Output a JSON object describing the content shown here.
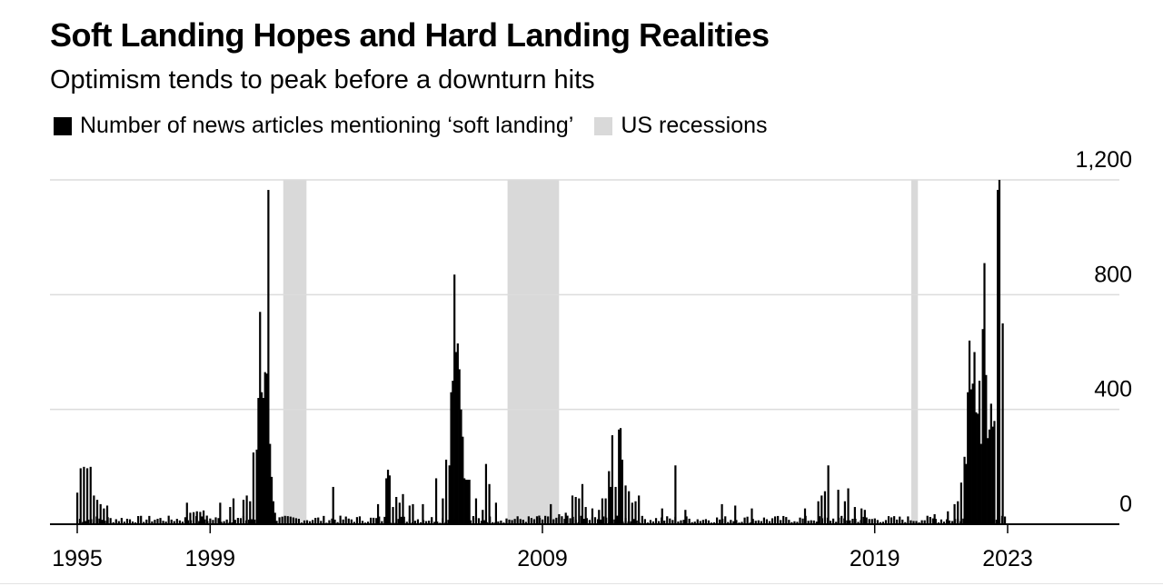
{
  "title": "Soft Landing Hopes and Hard Landing Realities",
  "subtitle": "Optimism tends to peak before a downturn hits",
  "legend": {
    "series": "Number of news articles mentioning ‘soft landing’",
    "recessions": "US recessions"
  },
  "colors": {
    "bars": "#000000",
    "recession": "#d9d9d9",
    "grid": "#dcdcdc",
    "axis": "#000000"
  },
  "chart_data": {
    "type": "bar",
    "title": "Soft Landing Hopes and Hard Landing Realities",
    "xlabel": "",
    "ylabel": "",
    "ylim": [
      0,
      1200
    ],
    "yticks": [
      0,
      400,
      800,
      1200
    ],
    "ytick_labels": [
      "0",
      "400",
      "800",
      "1,200"
    ],
    "x_range": [
      1995,
      2025.3
    ],
    "xticks": [
      1995,
      1999,
      2009,
      2019,
      2023
    ],
    "xtick_labels": [
      "1995",
      "1999",
      "2009",
      "2019",
      "2023"
    ],
    "recessions": [
      [
        2001.2,
        2001.9
      ],
      [
        2007.95,
        2009.5
      ],
      [
        2020.1,
        2020.3
      ]
    ],
    "peaks": [
      {
        "x": 1995.0,
        "y": 110
      },
      {
        "x": 1995.1,
        "y": 195
      },
      {
        "x": 1995.2,
        "y": 200
      },
      {
        "x": 1995.3,
        "y": 195
      },
      {
        "x": 1995.4,
        "y": 200
      },
      {
        "x": 1995.5,
        "y": 100
      },
      {
        "x": 1995.6,
        "y": 85
      },
      {
        "x": 1995.7,
        "y": 70
      },
      {
        "x": 1995.8,
        "y": 55
      },
      {
        "x": 1995.9,
        "y": 65
      },
      {
        "x": 1998.3,
        "y": 75
      },
      {
        "x": 1998.4,
        "y": 40
      },
      {
        "x": 1998.5,
        "y": 42
      },
      {
        "x": 1998.6,
        "y": 45
      },
      {
        "x": 1998.7,
        "y": 43
      },
      {
        "x": 1998.8,
        "y": 48
      },
      {
        "x": 1998.9,
        "y": 30
      },
      {
        "x": 1999.3,
        "y": 75
      },
      {
        "x": 1999.6,
        "y": 60
      },
      {
        "x": 1999.7,
        "y": 90
      },
      {
        "x": 2000.0,
        "y": 85
      },
      {
        "x": 2000.1,
        "y": 100
      },
      {
        "x": 2000.2,
        "y": 80
      },
      {
        "x": 2000.3,
        "y": 250
      },
      {
        "x": 2000.4,
        "y": 260
      },
      {
        "x": 2000.45,
        "y": 440
      },
      {
        "x": 2000.5,
        "y": 740
      },
      {
        "x": 2000.55,
        "y": 460
      },
      {
        "x": 2000.6,
        "y": 440
      },
      {
        "x": 2000.65,
        "y": 530
      },
      {
        "x": 2000.7,
        "y": 525
      },
      {
        "x": 2000.75,
        "y": 1165
      },
      {
        "x": 2000.8,
        "y": 280
      },
      {
        "x": 2000.85,
        "y": 165
      },
      {
        "x": 2000.9,
        "y": 80
      },
      {
        "x": 2000.95,
        "y": 40
      },
      {
        "x": 2002.7,
        "y": 130
      },
      {
        "x": 2004.05,
        "y": 70
      },
      {
        "x": 2004.3,
        "y": 160
      },
      {
        "x": 2004.35,
        "y": 190
      },
      {
        "x": 2004.4,
        "y": 170
      },
      {
        "x": 2004.5,
        "y": 60
      },
      {
        "x": 2004.6,
        "y": 95
      },
      {
        "x": 2004.7,
        "y": 75
      },
      {
        "x": 2004.8,
        "y": 105
      },
      {
        "x": 2005.0,
        "y": 65
      },
      {
        "x": 2005.1,
        "y": 70
      },
      {
        "x": 2005.4,
        "y": 70
      },
      {
        "x": 2005.8,
        "y": 160
      },
      {
        "x": 2006.0,
        "y": 90
      },
      {
        "x": 2006.1,
        "y": 225
      },
      {
        "x": 2006.2,
        "y": 205
      },
      {
        "x": 2006.25,
        "y": 460
      },
      {
        "x": 2006.3,
        "y": 500
      },
      {
        "x": 2006.35,
        "y": 870
      },
      {
        "x": 2006.4,
        "y": 600
      },
      {
        "x": 2006.45,
        "y": 630
      },
      {
        "x": 2006.5,
        "y": 540
      },
      {
        "x": 2006.55,
        "y": 400
      },
      {
        "x": 2006.6,
        "y": 305
      },
      {
        "x": 2006.65,
        "y": 160
      },
      {
        "x": 2006.7,
        "y": 155
      },
      {
        "x": 2006.75,
        "y": 155
      },
      {
        "x": 2006.8,
        "y": 155
      },
      {
        "x": 2007.0,
        "y": 90
      },
      {
        "x": 2007.2,
        "y": 50
      },
      {
        "x": 2007.3,
        "y": 210
      },
      {
        "x": 2007.4,
        "y": 140
      },
      {
        "x": 2007.6,
        "y": 75
      },
      {
        "x": 2008.9,
        "y": 30
      },
      {
        "x": 2009.25,
        "y": 70
      },
      {
        "x": 2009.5,
        "y": 35
      },
      {
        "x": 2009.7,
        "y": 40
      },
      {
        "x": 2009.9,
        "y": 100
      },
      {
        "x": 2010.0,
        "y": 95
      },
      {
        "x": 2010.1,
        "y": 90
      },
      {
        "x": 2010.2,
        "y": 140
      },
      {
        "x": 2010.3,
        "y": 60
      },
      {
        "x": 2010.5,
        "y": 55
      },
      {
        "x": 2010.7,
        "y": 50
      },
      {
        "x": 2010.8,
        "y": 90
      },
      {
        "x": 2010.9,
        "y": 90
      },
      {
        "x": 2011.0,
        "y": 185
      },
      {
        "x": 2011.05,
        "y": 130
      },
      {
        "x": 2011.1,
        "y": 310
      },
      {
        "x": 2011.2,
        "y": 130
      },
      {
        "x": 2011.3,
        "y": 330
      },
      {
        "x": 2011.35,
        "y": 335
      },
      {
        "x": 2011.4,
        "y": 225
      },
      {
        "x": 2011.5,
        "y": 135
      },
      {
        "x": 2011.6,
        "y": 115
      },
      {
        "x": 2011.7,
        "y": 75
      },
      {
        "x": 2011.8,
        "y": 80
      },
      {
        "x": 2011.9,
        "y": 100
      },
      {
        "x": 2012.6,
        "y": 55
      },
      {
        "x": 2013.0,
        "y": 205
      },
      {
        "x": 2013.3,
        "y": 50
      },
      {
        "x": 2014.4,
        "y": 70
      },
      {
        "x": 2014.8,
        "y": 65
      },
      {
        "x": 2015.3,
        "y": 55
      },
      {
        "x": 2016.9,
        "y": 55
      },
      {
        "x": 2017.3,
        "y": 80
      },
      {
        "x": 2017.4,
        "y": 100
      },
      {
        "x": 2017.5,
        "y": 115
      },
      {
        "x": 2017.6,
        "y": 205
      },
      {
        "x": 2017.9,
        "y": 120
      },
      {
        "x": 2018.1,
        "y": 80
      },
      {
        "x": 2018.2,
        "y": 125
      },
      {
        "x": 2018.4,
        "y": 60
      },
      {
        "x": 2018.6,
        "y": 55
      },
      {
        "x": 2018.7,
        "y": 50
      },
      {
        "x": 2020.8,
        "y": 35
      },
      {
        "x": 2021.2,
        "y": 45
      },
      {
        "x": 2021.4,
        "y": 70
      },
      {
        "x": 2021.5,
        "y": 80
      },
      {
        "x": 2021.6,
        "y": 145
      },
      {
        "x": 2021.7,
        "y": 235
      },
      {
        "x": 2021.75,
        "y": 210
      },
      {
        "x": 2021.8,
        "y": 460
      },
      {
        "x": 2021.85,
        "y": 640
      },
      {
        "x": 2021.9,
        "y": 470
      },
      {
        "x": 2021.95,
        "y": 490
      },
      {
        "x": 2022.0,
        "y": 600
      },
      {
        "x": 2022.05,
        "y": 390
      },
      {
        "x": 2022.1,
        "y": 385
      },
      {
        "x": 2022.15,
        "y": 500
      },
      {
        "x": 2022.2,
        "y": 280
      },
      {
        "x": 2022.25,
        "y": 680
      },
      {
        "x": 2022.3,
        "y": 910
      },
      {
        "x": 2022.35,
        "y": 520
      },
      {
        "x": 2022.4,
        "y": 300
      },
      {
        "x": 2022.45,
        "y": 330
      },
      {
        "x": 2022.5,
        "y": 420
      },
      {
        "x": 2022.55,
        "y": 340
      },
      {
        "x": 2022.6,
        "y": 360
      },
      {
        "x": 2022.7,
        "y": 1165
      },
      {
        "x": 2022.75,
        "y": 1200
      },
      {
        "x": 2022.85,
        "y": 700
      }
    ]
  }
}
